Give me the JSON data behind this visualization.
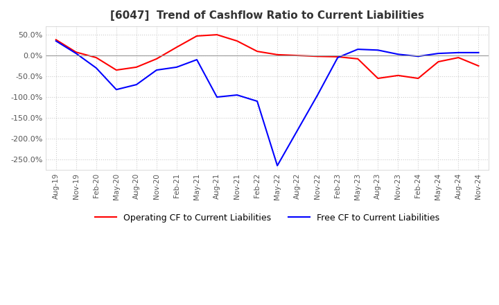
{
  "title": "[6047]  Trend of Cashflow Ratio to Current Liabilities",
  "x_labels": [
    "Aug-19",
    "Nov-19",
    "Feb-20",
    "May-20",
    "Aug-20",
    "Nov-20",
    "Feb-21",
    "May-21",
    "Aug-21",
    "Nov-21",
    "Feb-22",
    "May-22",
    "Aug-22",
    "Nov-22",
    "Feb-23",
    "May-23",
    "Aug-23",
    "Nov-23",
    "Feb-24",
    "May-24",
    "Aug-24",
    "Nov-24"
  ],
  "operating_cf": [
    38,
    8,
    -5,
    -35,
    -28,
    -8,
    20,
    47,
    50,
    35,
    10,
    2,
    0,
    -2,
    -3,
    -8,
    -55,
    -48,
    -55,
    -15,
    -5,
    -25
  ],
  "free_cf": [
    35,
    5,
    -30,
    -82,
    -70,
    -35,
    -28,
    -10,
    -100,
    -95,
    -110,
    -265,
    -180,
    -95,
    -5,
    15,
    13,
    3,
    -2,
    5,
    7,
    7
  ],
  "operating_color": "#ff0000",
  "free_color": "#0000ff",
  "ylim_min": -275,
  "ylim_max": 70,
  "yticks": [
    50,
    0,
    -50,
    -100,
    -150,
    -200,
    -250
  ],
  "legend_op": "Operating CF to Current Liabilities",
  "legend_free": "Free CF to Current Liabilities",
  "bg_color": "#ffffff",
  "grid_color": "#cccccc",
  "title_color": "#333333"
}
